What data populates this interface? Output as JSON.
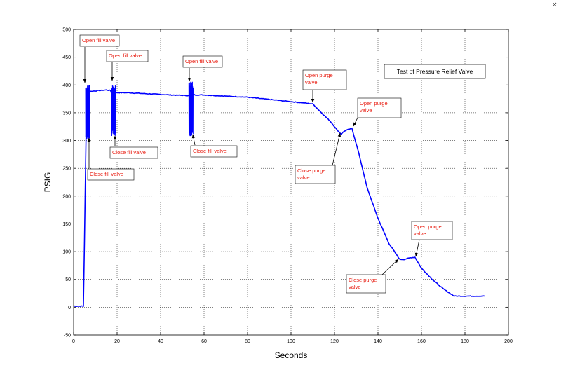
{
  "window": {
    "close_glyph": "×"
  },
  "chart_data": {
    "type": "line",
    "title": "Test of Pressure Relief Valve",
    "xlabel": "Seconds",
    "ylabel": "PSIG",
    "xlim": [
      0,
      200
    ],
    "ylim": [
      -50,
      500
    ],
    "xticks": [
      0,
      20,
      40,
      60,
      80,
      100,
      120,
      140,
      160,
      180,
      200
    ],
    "yticks": [
      -50,
      0,
      50,
      100,
      150,
      200,
      250,
      300,
      350,
      400,
      450,
      500
    ],
    "grid": true,
    "line_color": "#0000ff",
    "annotation_color": "#ff0000",
    "series": [
      {
        "x": [
          0,
          4.5,
          5,
          5.5,
          6,
          7,
          9,
          12,
          15,
          17,
          17.5,
          18,
          18.5,
          19,
          20,
          25,
          35,
          45,
          52,
          53,
          54,
          55,
          56,
          60,
          70,
          80,
          90,
          100,
          110,
          114,
          118,
          121,
          123,
          125,
          128,
          131,
          135,
          140,
          145,
          150,
          152,
          155,
          157,
          160,
          165,
          170,
          175,
          180,
          189
        ],
        "y": [
          2,
          2,
          120,
          250,
          380,
          388,
          389,
          390,
          391,
          390,
          384,
          385,
          386,
          386,
          386,
          386,
          384,
          382,
          381,
          381,
          381,
          383,
          382,
          382,
          380,
          378,
          374,
          370,
          366,
          350,
          335,
          320,
          312,
          318,
          322,
          280,
          215,
          160,
          115,
          86,
          86,
          89,
          90,
          70,
          50,
          33,
          20,
          20,
          20
        ]
      }
    ],
    "bursts": [
      {
        "x_start": 5.5,
        "x_end": 7.5,
        "y_min": 300,
        "y_max": 400
      },
      {
        "x_start": 17.5,
        "x_end": 19.5,
        "y_min": 308,
        "y_max": 401
      },
      {
        "x_start": 53,
        "x_end": 55,
        "y_min": 308,
        "y_max": 406
      }
    ],
    "annotations": [
      {
        "lines": [
          "Open fill valve"
        ],
        "x": 5,
        "y": 400
      },
      {
        "lines": [
          "Close fill valve"
        ],
        "x": 7.5,
        "y": 300
      },
      {
        "lines": [
          "Open fill valve"
        ],
        "x": 18,
        "y": 402
      },
      {
        "lines": [
          "Close fill valve"
        ],
        "x": 19.5,
        "y": 306
      },
      {
        "lines": [
          "Open fill valve"
        ],
        "x": 54,
        "y": 407
      },
      {
        "lines": [
          "Close fill valve"
        ],
        "x": 55.5,
        "y": 308
      },
      {
        "lines": [
          "Open purge",
          "valve"
        ],
        "x": 111,
        "y": 365
      },
      {
        "lines": [
          "Close purge",
          "valve"
        ],
        "x": 122,
        "y": 312
      },
      {
        "lines": [
          "Open purge",
          "valve"
        ],
        "x": 128,
        "y": 322
      },
      {
        "lines": [
          "Close purge",
          "valve"
        ],
        "x": 150,
        "y": 86
      },
      {
        "lines": [
          "Open purge",
          "valve"
        ],
        "x": 157,
        "y": 90
      }
    ]
  }
}
